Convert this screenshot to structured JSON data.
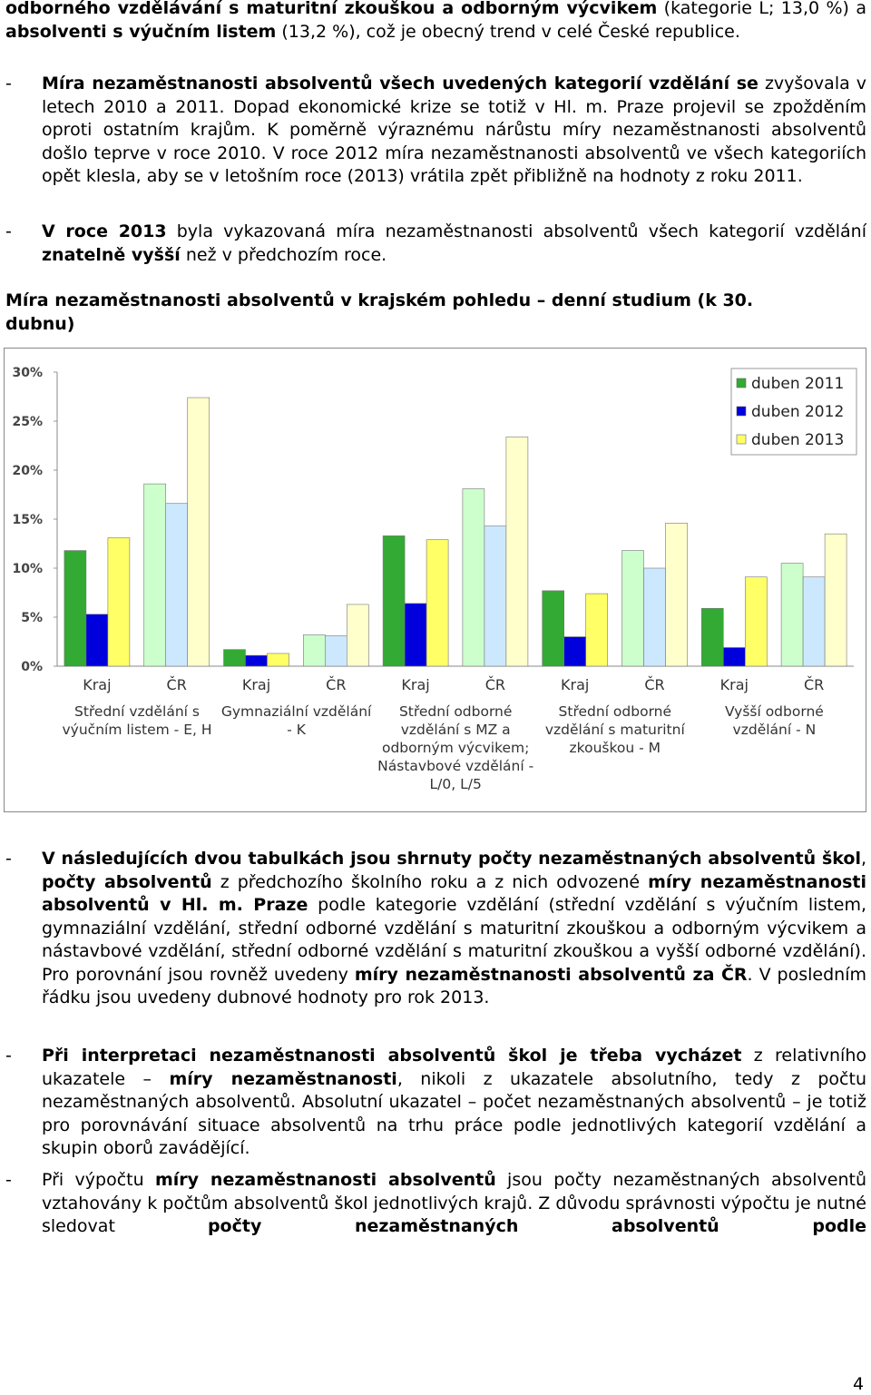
{
  "intro": {
    "runs": [
      {
        "text": "odborného vzdělávání s maturitní zkouškou a odborným výcvikem",
        "bold": true
      },
      {
        "text": " (kategorie L; 13,0 %) a "
      },
      {
        "text": "absolventi s výučním listem",
        "bold": true
      },
      {
        "text": " (13,2 %), což je obecný trend v celé České republice."
      }
    ]
  },
  "bullets_top": [
    {
      "marker": "-",
      "runs": [
        {
          "text": "Míra nezaměstnanosti absolventů všech uvedených kategorií vzdělání se",
          "bold": true
        },
        {
          "text": " zvyšovala v letech 2010 a 2011. Dopad ekonomické krize se totiž v Hl. m. Praze projevil se zpožděním oproti ostatním krajům. K poměrně výraznému nárůstu míry nezaměstnanosti absolventů došlo teprve v roce 2010. V roce 2012 míra nezaměstnanosti absolventů ve všech kategoriích opět klesla, aby se v letošním roce (2013) vrátila zpět přibližně na hodnoty z roku 2011."
        }
      ]
    },
    {
      "marker": "-",
      "runs": [
        {
          "text": "V roce 2013",
          "bold": true
        },
        {
          "text": " byla vykazovaná míra nezaměstnanosti absolventů všech kategorií vzdělání "
        },
        {
          "text": "znatelně vyšší",
          "bold": true
        },
        {
          "text": " než v předchozím roce."
        }
      ]
    }
  ],
  "heading": "Míra nezaměstnanosti absolventů v krajském pohledu – denní studium (k 30. dubnu)",
  "chart_data": {
    "type": "bar",
    "categories": [
      "Kraj",
      "ČR",
      "Kraj",
      "ČR",
      "Kraj",
      "ČR",
      "Kraj",
      "ČR",
      "Kraj",
      "ČR"
    ],
    "groups": [
      "Střední vzdělání s\nvýučním listem - E, H",
      "Gymnaziální vzdělání\n- K",
      "Střední odborné\nvzdělání s MZ a\nodborným výcvikem;\nNástavbové vzdělání -\nL/0, L/5",
      "Střední odborné\nvzdělání s maturitní\nzkouškou - M",
      "Vyšší odborné\nvzdělání - N"
    ],
    "series": [
      {
        "name": "duben 2011",
        "color": "#33aa33",
        "color_light": "#ccffcc",
        "values": [
          11.8,
          18.6,
          1.7,
          3.2,
          13.3,
          18.1,
          7.7,
          11.8,
          5.9,
          10.5
        ]
      },
      {
        "name": "duben 2012",
        "color": "#0000dd",
        "color_light": "#cce8ff",
        "values": [
          5.3,
          16.6,
          1.1,
          3.1,
          6.4,
          14.3,
          3.0,
          10.0,
          1.9,
          9.1
        ]
      },
      {
        "name": "duben 2013",
        "color": "#ffff66",
        "color_light": "#ffffcc",
        "values": [
          13.1,
          27.4,
          1.3,
          6.3,
          12.9,
          23.4,
          7.4,
          14.6,
          9.1,
          13.5
        ]
      }
    ],
    "ylim": [
      0,
      30
    ],
    "yticks": [
      {
        "value": 0,
        "label": "0%"
      },
      {
        "value": 5,
        "label": "5%"
      },
      {
        "value": 10,
        "label": "10%"
      },
      {
        "value": 15,
        "label": "15%"
      },
      {
        "value": 20,
        "label": "20%"
      },
      {
        "value": 25,
        "label": "25%"
      },
      {
        "value": 30,
        "label": "30%"
      }
    ],
    "grid": false,
    "legend": "top-right"
  },
  "bullets_bottom": [
    {
      "marker": "-",
      "runs": [
        {
          "text": "V následujících dvou tabulkách jsou shrnuty počty nezaměstnaných absolventů škol",
          "bold": true
        },
        {
          "text": ", "
        },
        {
          "text": "počty absolventů",
          "bold": true
        },
        {
          "text": " z předchozího školního roku a z nich odvozené "
        },
        {
          "text": "míry nezaměstnanosti absolventů v Hl. m. Praze",
          "bold": true
        },
        {
          "text": " podle kategorie vzdělání (střední vzdělání s výučním listem, gymnaziální vzdělání, střední odborné vzdělání s maturitní zkouškou a odborným výcvikem a nástavbové vzdělání, střední odborné vzdělání s maturitní zkouškou a vyšší odborné vzdělání). Pro porovnání jsou rovněž uvedeny "
        },
        {
          "text": "míry nezaměstnanosti absolventů za ČR",
          "bold": true
        },
        {
          "text": ". V posledním řádku jsou uvedeny dubnové hodnoty pro rok 2013."
        }
      ]
    },
    {
      "marker": "-",
      "runs": [
        {
          "text": "Při interpretaci nezaměstnanosti absolventů škol je třeba vycházet",
          "bold": true
        },
        {
          "text": " z relativního ukazatele – "
        },
        {
          "text": "míry nezaměstnanosti",
          "bold": true
        },
        {
          "text": ", nikoli z ukazatele absolutního, tedy z počtu nezaměstnaných absolventů. Absolutní ukazatel – počet nezaměstnaných absolventů – je totiž pro porovnávání situace absolventů na trhu práce podle jednotlivých kategorií vzdělání a skupin oborů zavádějící."
        }
      ]
    },
    {
      "marker": "-",
      "runs": [
        {
          "text": "Při výpočtu "
        },
        {
          "text": "míry nezaměstnanosti absolventů",
          "bold": true
        },
        {
          "text": " jsou počty nezaměstnaných absolventů vztahovány k počtům absolventů škol jednotlivých krajů. Z důvodu správnosti výpočtu je nutné sledovat "
        },
        {
          "text": "počty nezaměstnaných absolventů podle",
          "bold": true
        }
      ]
    }
  ],
  "page_number": "4"
}
